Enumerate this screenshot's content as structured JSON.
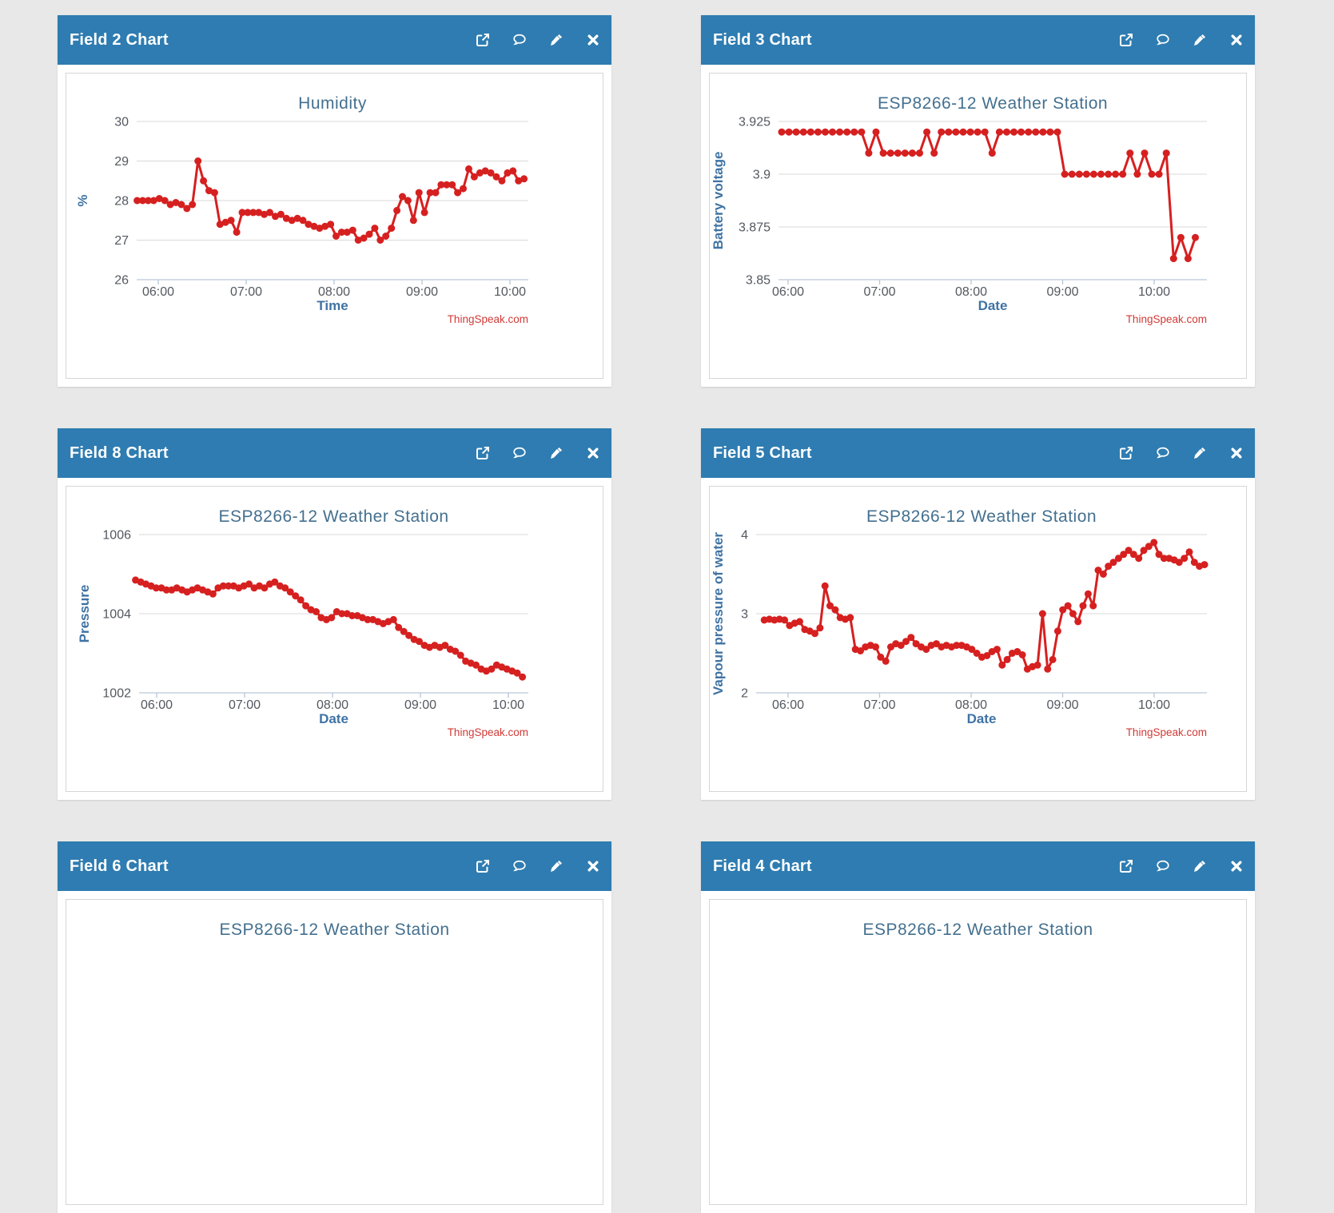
{
  "page": {
    "background_color": "#e8e8e8",
    "header_color": "#2e7cb1",
    "series_color": "#d62020",
    "credits_color": "#d03a36",
    "title_color": "#44708f",
    "axis_title_color": "#3f73a4",
    "tick_label_color": "#53585f"
  },
  "panels": [
    {
      "header": {
        "title": "Field 2 Chart"
      },
      "tools": [
        "external-link",
        "comment",
        "edit",
        "close"
      ]
    },
    {
      "header": {
        "title": "Field 3 Chart"
      },
      "tools": [
        "external-link",
        "comment",
        "edit",
        "close"
      ]
    },
    {
      "header": {
        "title": "Field 8 Chart"
      },
      "tools": [
        "external-link",
        "comment",
        "edit",
        "close"
      ]
    },
    {
      "header": {
        "title": "Field 5 Chart"
      },
      "tools": [
        "external-link",
        "comment",
        "edit",
        "close"
      ]
    },
    {
      "header": {
        "title": "Field 6 Chart"
      },
      "tools": [
        "external-link",
        "comment",
        "edit",
        "close"
      ]
    },
    {
      "header": {
        "title": "Field 4 Chart"
      },
      "tools": [
        "external-link",
        "comment",
        "edit",
        "close"
      ]
    }
  ],
  "chart_data": [
    {
      "type": "line",
      "title": "Humidity",
      "xlabel": "Time",
      "ylabel": "%",
      "credits": "ThingSpeak.com",
      "ylim": [
        26,
        30
      ],
      "yticks": [
        "30",
        "29",
        "28",
        "27",
        "26"
      ],
      "ytick_values": [
        30,
        29,
        28,
        27,
        26
      ],
      "xticks": [
        "06:00",
        "07:00",
        "08:00",
        "09:00",
        "10:00"
      ],
      "xtick_hours": [
        6,
        7,
        8,
        9,
        10
      ],
      "x_start_hour": 5.76,
      "x_end_hour": 10.16,
      "values": [
        28.0,
        28.0,
        28.0,
        28.0,
        28.05,
        28.0,
        27.9,
        27.95,
        27.9,
        27.8,
        27.9,
        29.0,
        28.5,
        28.25,
        28.2,
        27.4,
        27.45,
        27.5,
        27.2,
        27.7,
        27.7,
        27.7,
        27.7,
        27.65,
        27.7,
        27.6,
        27.65,
        27.55,
        27.5,
        27.55,
        27.5,
        27.4,
        27.35,
        27.3,
        27.35,
        27.4,
        27.1,
        27.2,
        27.2,
        27.25,
        27.0,
        27.05,
        27.15,
        27.3,
        27.0,
        27.1,
        27.3,
        27.75,
        28.1,
        28.0,
        27.5,
        28.2,
        27.7,
        28.2,
        28.2,
        28.4,
        28.4,
        28.4,
        28.2,
        28.3,
        28.8,
        28.6,
        28.7,
        28.75,
        28.7,
        28.6,
        28.5,
        28.7,
        28.75,
        28.5,
        28.55
      ]
    },
    {
      "type": "line",
      "title": "ESP8266-12 Weather Station",
      "xlabel": "Date",
      "ylabel": "Battery voltage",
      "credits": "ThingSpeak.com",
      "ylim": [
        3.85,
        3.925
      ],
      "yticks": [
        "3.925",
        "3.9",
        "3.875",
        "3.85"
      ],
      "ytick_values": [
        3.925,
        3.9,
        3.875,
        3.85
      ],
      "xticks": [
        "06:00",
        "07:00",
        "08:00",
        "09:00",
        "10:00"
      ],
      "xtick_hours": [
        6,
        7,
        8,
        9,
        10
      ],
      "x_start_hour": 5.93,
      "x_end_hour": 10.45,
      "values": [
        3.92,
        3.92,
        3.92,
        3.92,
        3.92,
        3.92,
        3.92,
        3.92,
        3.92,
        3.92,
        3.92,
        3.92,
        3.91,
        3.92,
        3.91,
        3.91,
        3.91,
        3.91,
        3.91,
        3.91,
        3.92,
        3.91,
        3.92,
        3.92,
        3.92,
        3.92,
        3.92,
        3.92,
        3.92,
        3.91,
        3.92,
        3.92,
        3.92,
        3.92,
        3.92,
        3.92,
        3.92,
        3.92,
        3.92,
        3.9,
        3.9,
        3.9,
        3.9,
        3.9,
        3.9,
        3.9,
        3.9,
        3.9,
        3.91,
        3.9,
        3.91,
        3.9,
        3.9,
        3.91,
        3.86,
        3.87,
        3.86,
        3.87
      ]
    },
    {
      "type": "line",
      "title": "ESP8266-12 Weather Station",
      "xlabel": "Date",
      "ylabel": "Pressure",
      "credits": "ThingSpeak.com",
      "ylim": [
        1002,
        1006
      ],
      "yticks": [
        "1006",
        "1004",
        "1002"
      ],
      "ytick_values": [
        1006,
        1004,
        1002
      ],
      "xticks": [
        "06:00",
        "07:00",
        "08:00",
        "09:00",
        "10:00"
      ],
      "xtick_hours": [
        6,
        7,
        8,
        9,
        10
      ],
      "x_start_hour": 5.76,
      "x_end_hour": 10.16,
      "values": [
        1004.85,
        1004.8,
        1004.75,
        1004.7,
        1004.65,
        1004.65,
        1004.6,
        1004.6,
        1004.65,
        1004.6,
        1004.55,
        1004.6,
        1004.65,
        1004.6,
        1004.55,
        1004.5,
        1004.65,
        1004.7,
        1004.7,
        1004.7,
        1004.65,
        1004.7,
        1004.75,
        1004.65,
        1004.7,
        1004.65,
        1004.75,
        1004.8,
        1004.7,
        1004.65,
        1004.55,
        1004.45,
        1004.35,
        1004.2,
        1004.1,
        1004.05,
        1003.9,
        1003.85,
        1003.9,
        1004.05,
        1004.0,
        1004.0,
        1003.95,
        1003.95,
        1003.9,
        1003.85,
        1003.85,
        1003.8,
        1003.75,
        1003.8,
        1003.85,
        1003.65,
        1003.55,
        1003.45,
        1003.35,
        1003.3,
        1003.2,
        1003.15,
        1003.2,
        1003.15,
        1003.2,
        1003.1,
        1003.05,
        1002.95,
        1002.8,
        1002.75,
        1002.7,
        1002.6,
        1002.55,
        1002.6,
        1002.7,
        1002.65,
        1002.6,
        1002.55,
        1002.5,
        1002.4
      ]
    },
    {
      "type": "line",
      "title": "ESP8266-12 Weather Station",
      "xlabel": "Date",
      "ylabel": "Vapour pressure of water",
      "credits": "ThingSpeak.com",
      "ylim": [
        2,
        4
      ],
      "yticks": [
        "4",
        "3",
        "2"
      ],
      "ytick_values": [
        4,
        3,
        2
      ],
      "xticks": [
        "06:00",
        "07:00",
        "08:00",
        "09:00",
        "10:00"
      ],
      "xtick_hours": [
        6,
        7,
        8,
        9,
        10
      ],
      "x_start_hour": 5.74,
      "x_end_hour": 10.55,
      "values": [
        2.92,
        2.93,
        2.92,
        2.93,
        2.92,
        2.85,
        2.88,
        2.9,
        2.8,
        2.78,
        2.75,
        2.82,
        3.35,
        3.1,
        3.05,
        2.95,
        2.93,
        2.95,
        2.55,
        2.53,
        2.58,
        2.6,
        2.58,
        2.45,
        2.4,
        2.58,
        2.62,
        2.6,
        2.65,
        2.7,
        2.62,
        2.58,
        2.55,
        2.6,
        2.62,
        2.58,
        2.6,
        2.58,
        2.6,
        2.6,
        2.58,
        2.55,
        2.5,
        2.45,
        2.47,
        2.52,
        2.55,
        2.35,
        2.42,
        2.5,
        2.52,
        2.48,
        2.3,
        2.33,
        2.35,
        3.0,
        2.3,
        2.42,
        2.78,
        3.05,
        3.1,
        3.0,
        2.9,
        3.1,
        3.25,
        3.1,
        3.55,
        3.5,
        3.6,
        3.65,
        3.7,
        3.75,
        3.8,
        3.75,
        3.7,
        3.8,
        3.85,
        3.9,
        3.75,
        3.7,
        3.7,
        3.68,
        3.65,
        3.7,
        3.78,
        3.65,
        3.6,
        3.62
      ]
    },
    {
      "type": "line",
      "title": "ESP8266-12 Weather Station",
      "partial": "true"
    },
    {
      "type": "line",
      "title": "ESP8266-12 Weather Station",
      "partial": "true"
    }
  ]
}
